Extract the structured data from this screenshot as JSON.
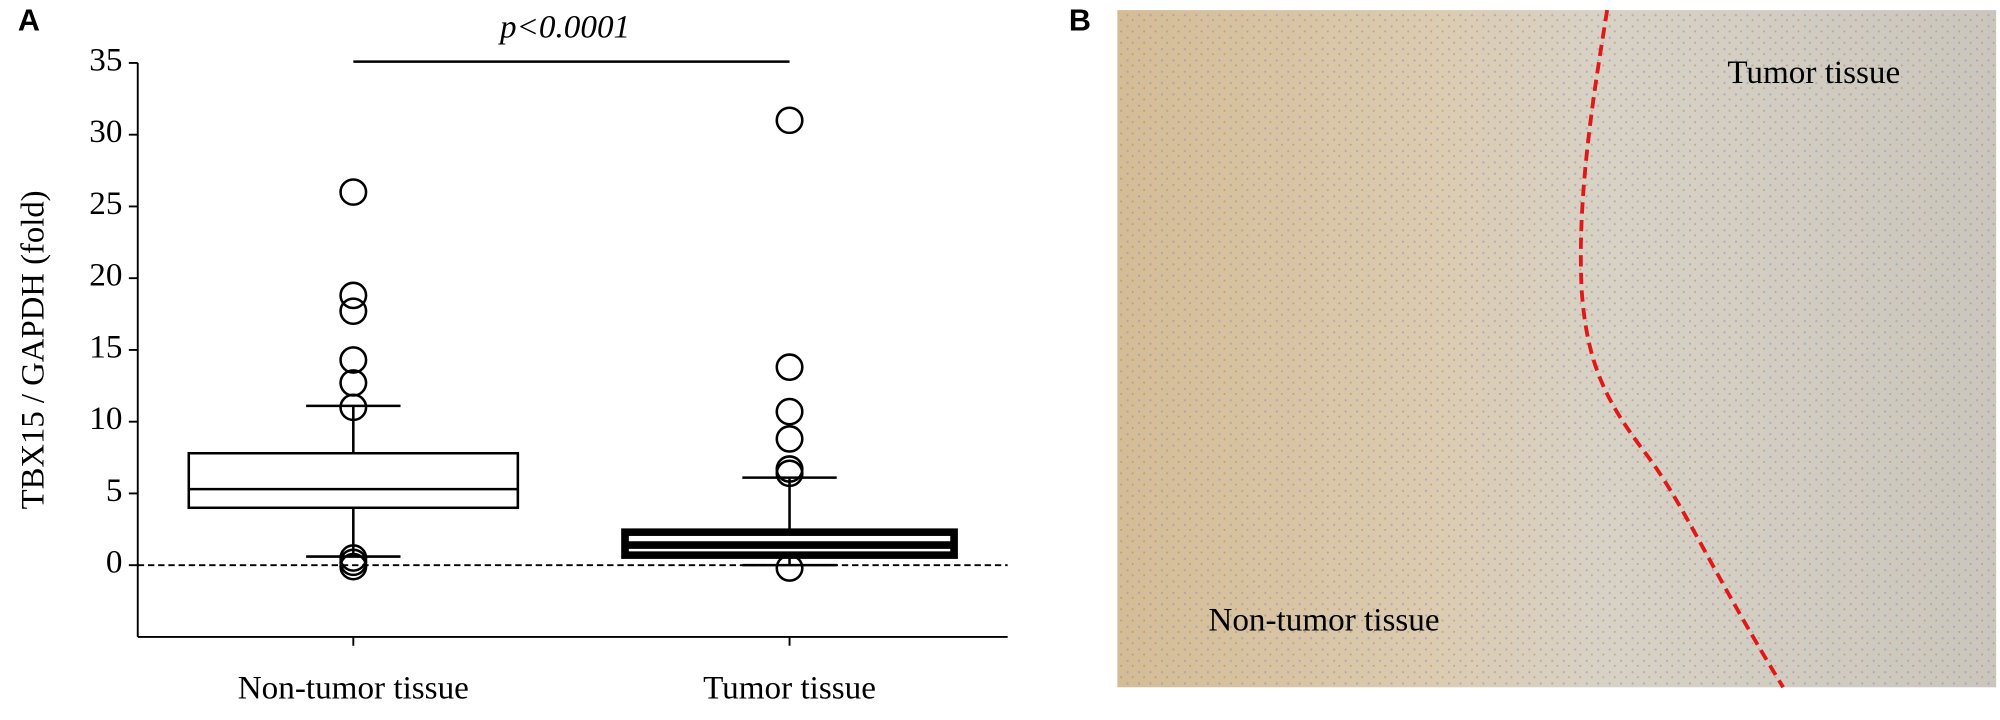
{
  "panel_labels": [
    "A",
    "B"
  ],
  "chart_data": {
    "type": "box",
    "y_label": "TBX15 / GAPDH (fold)",
    "annotation": "p<0.0001",
    "categories": [
      "Non-tumor tissue",
      "Tumor tissue"
    ],
    "boxes": [
      {
        "whisker_low": 0.6,
        "q1": 4,
        "median": 5.3,
        "q3": 7.8,
        "whisker_high": 11.1,
        "outliers": [
          26,
          18.8,
          17.7,
          14.3,
          12.7,
          11,
          0.5,
          0.2,
          -0.1
        ]
      },
      {
        "whisker_low": 0,
        "q1": 0.7,
        "median": 1.4,
        "q3": 2.3,
        "whisker_high": 6.1,
        "outliers": [
          31,
          13.8,
          10.7,
          8.8,
          6.7,
          6.4,
          -0.2
        ]
      }
    ],
    "reference_line": 0,
    "ylim": [
      -5,
      35
    ],
    "yticks": [
      0,
      5,
      10,
      15,
      20,
      25,
      30,
      35
    ]
  },
  "image_labels": [
    "Tumor tissue",
    "Non-tumor tissue"
  ]
}
